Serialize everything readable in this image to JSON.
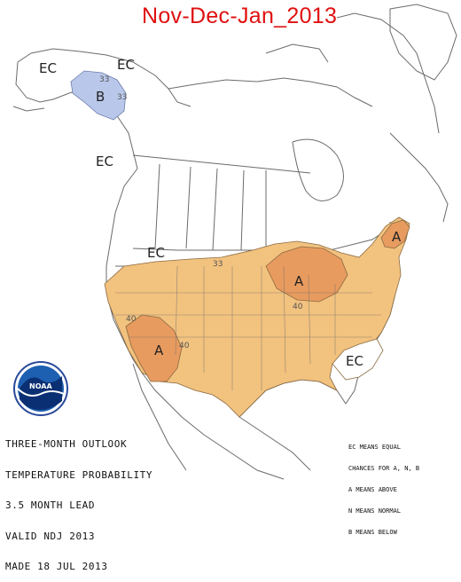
{
  "title": "Nov-Dec-Jan_2013",
  "caption": {
    "lines": [
      "THREE-MONTH OUTLOOK",
      "TEMPERATURE PROBABILITY",
      "3.5 MONTH LEAD",
      "VALID NDJ 2013",
      "MADE 18 JUL 2013"
    ]
  },
  "legend": {
    "lines": [
      "EC MEANS EQUAL",
      "CHANCES FOR A, N, B",
      "A MEANS ABOVE",
      "N MEANS NORMAL",
      "B MEANS BELOW"
    ]
  },
  "logo": {
    "text": "NOAA"
  },
  "regions": {
    "ec_labels": [
      "EC",
      "EC",
      "EC",
      "EC",
      "EC"
    ],
    "above_labels": [
      "A",
      "A",
      "A"
    ],
    "below_labels": [
      "B"
    ],
    "contours": [
      "33",
      "33",
      "33",
      "40",
      "40",
      "40"
    ]
  },
  "colors": {
    "above_33": "#f2c27f",
    "above_40": "#e89b5f",
    "below_33": "#b9c8ea",
    "lines": "#6b6b6b"
  }
}
